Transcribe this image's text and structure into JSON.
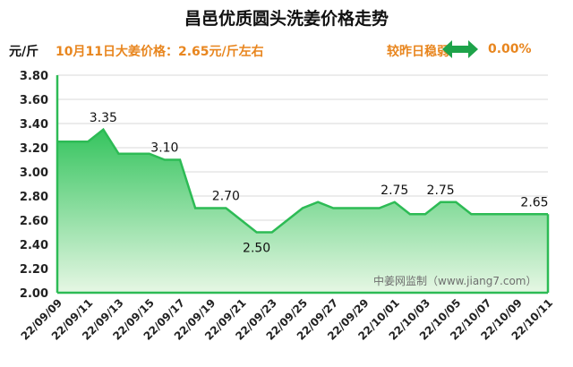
{
  "header": {
    "title": "昌邑优质圆头洗姜价格走势",
    "unit": "元/斤",
    "price_note": "10月11日大姜价格：2.65元/斤左右",
    "trend_text": "较昨日稳弱",
    "change": "0.00%",
    "trend_icon": "double-arrow-icon",
    "accent_color": "#e8861f",
    "icon_color": "#1ea34a"
  },
  "watermark": "中姜网监制（www.jiang7.com）",
  "chart_data": {
    "type": "area",
    "ylim": [
      2.0,
      3.8
    ],
    "yticks": [
      "2.00",
      "2.20",
      "2.40",
      "2.60",
      "2.80",
      "3.00",
      "3.20",
      "3.40",
      "3.60",
      "3.80"
    ],
    "x": [
      "22/09/09",
      "22/09/10",
      "22/09/11",
      "22/09/12",
      "22/09/13",
      "22/09/14",
      "22/09/15",
      "22/09/16",
      "22/09/17",
      "22/09/18",
      "22/09/19",
      "22/09/20",
      "22/09/21",
      "22/09/22",
      "22/09/23",
      "22/09/24",
      "22/09/25",
      "22/09/26",
      "22/09/27",
      "22/09/28",
      "22/09/29",
      "22/09/30",
      "22/10/01",
      "22/10/02",
      "22/10/03",
      "22/10/04",
      "22/10/05",
      "22/10/06",
      "22/10/07",
      "22/10/08",
      "22/10/09",
      "22/10/10",
      "22/10/11"
    ],
    "xticks": [
      "22/09/09",
      "22/09/11",
      "22/09/13",
      "22/09/15",
      "22/09/17",
      "22/09/19",
      "22/09/21",
      "22/09/23",
      "22/09/25",
      "22/09/27",
      "22/09/29",
      "22/10/01",
      "22/10/03",
      "22/10/05",
      "22/10/07",
      "22/10/09",
      "22/10/11"
    ],
    "values": [
      3.25,
      3.25,
      3.25,
      3.35,
      3.15,
      3.15,
      3.15,
      3.1,
      3.1,
      2.7,
      2.7,
      2.7,
      2.6,
      2.5,
      2.5,
      2.6,
      2.7,
      2.75,
      2.7,
      2.7,
      2.7,
      2.7,
      2.75,
      2.65,
      2.65,
      2.75,
      2.75,
      2.65,
      2.65,
      2.65,
      2.65,
      2.65,
      2.65
    ],
    "data_labels": [
      {
        "index": 3,
        "text": "3.35",
        "pos": "above"
      },
      {
        "index": 7,
        "text": "3.10",
        "pos": "above"
      },
      {
        "index": 11,
        "text": "2.70",
        "pos": "above"
      },
      {
        "index": 13,
        "text": "2.50",
        "pos": "below"
      },
      {
        "index": 22,
        "text": "2.75",
        "pos": "above"
      },
      {
        "index": 25,
        "text": "2.75",
        "pos": "above"
      },
      {
        "index": 32,
        "text": "2.65",
        "pos": "above"
      }
    ],
    "line_color": "#2dbb55",
    "fill_top": "#35c45e",
    "fill_bottom": "#e6f7e4"
  }
}
